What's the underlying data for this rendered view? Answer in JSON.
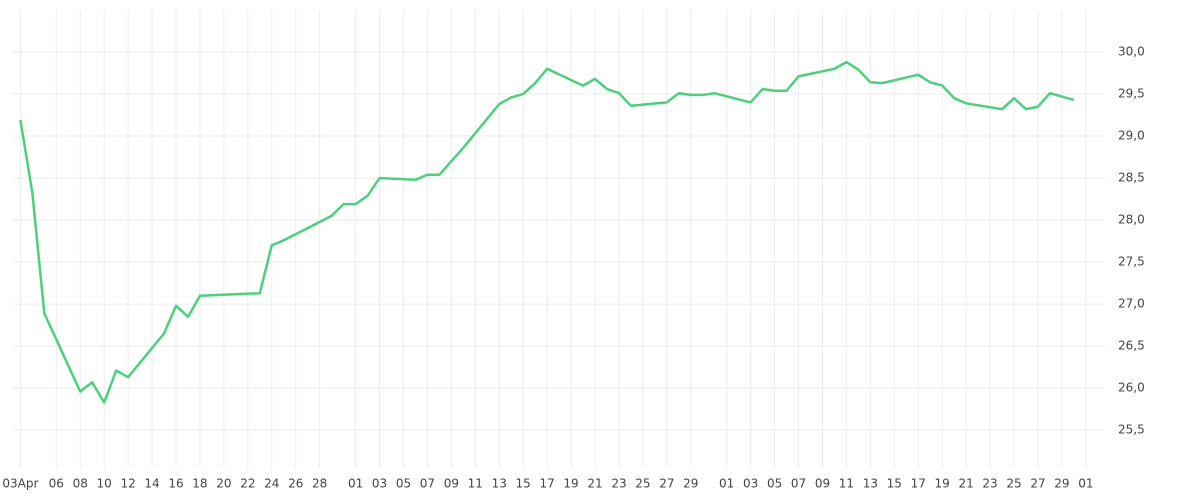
{
  "chart_data": {
    "type": "line",
    "x": [
      0,
      1,
      2,
      5,
      6,
      7,
      8,
      9,
      12,
      13,
      14,
      15,
      20,
      21,
      22,
      26,
      27,
      28,
      29,
      30,
      33,
      34,
      35,
      37,
      40,
      41,
      42,
      43,
      44,
      47,
      48,
      49,
      50,
      51,
      54,
      55,
      56,
      57,
      58,
      61,
      62,
      63,
      64,
      65,
      68,
      69,
      70,
      71,
      72,
      75,
      76,
      77,
      78,
      79,
      82,
      83,
      84,
      85,
      86,
      88
    ],
    "series": [
      {
        "color": "#4cd07d",
        "values": [
          29.19,
          28.32,
          26.89,
          25.96,
          26.07,
          25.83,
          26.21,
          26.13,
          26.65,
          26.98,
          26.85,
          27.1,
          27.13,
          27.7,
          27.76,
          28.05,
          28.19,
          28.19,
          28.29,
          28.5,
          28.48,
          28.54,
          28.54,
          28.86,
          29.38,
          29.46,
          29.5,
          29.63,
          29.8,
          29.6,
          29.68,
          29.56,
          29.51,
          29.36,
          29.4,
          29.51,
          29.49,
          29.49,
          29.51,
          29.4,
          29.56,
          29.54,
          29.54,
          29.71,
          29.8,
          29.88,
          29.79,
          29.64,
          29.63,
          29.73,
          29.64,
          29.6,
          29.45,
          29.39,
          29.32,
          29.45,
          29.32,
          29.35,
          29.51,
          29.43
        ]
      }
    ],
    "xlim": [
      -0.7,
      90.6
    ],
    "xticks": [
      {
        "value": 0,
        "label": "03Apr"
      },
      {
        "value": 3,
        "label": "06"
      },
      {
        "value": 5,
        "label": "08"
      },
      {
        "value": 7,
        "label": "10"
      },
      {
        "value": 9,
        "label": "12"
      },
      {
        "value": 11,
        "label": "14"
      },
      {
        "value": 13,
        "label": "16"
      },
      {
        "value": 15,
        "label": "18"
      },
      {
        "value": 17,
        "label": "20"
      },
      {
        "value": 19,
        "label": "22"
      },
      {
        "value": 21,
        "label": "24"
      },
      {
        "value": 23,
        "label": "26"
      },
      {
        "value": 25,
        "label": "28"
      },
      {
        "value": 28,
        "label": "01"
      },
      {
        "value": 30,
        "label": "03"
      },
      {
        "value": 32,
        "label": "05"
      },
      {
        "value": 34,
        "label": "07"
      },
      {
        "value": 36,
        "label": "09"
      },
      {
        "value": 38,
        "label": "11"
      },
      {
        "value": 40,
        "label": "13"
      },
      {
        "value": 42,
        "label": "15"
      },
      {
        "value": 44,
        "label": "17"
      },
      {
        "value": 46,
        "label": "19"
      },
      {
        "value": 48,
        "label": "21"
      },
      {
        "value": 50,
        "label": "23"
      },
      {
        "value": 52,
        "label": "25"
      },
      {
        "value": 54,
        "label": "27"
      },
      {
        "value": 56,
        "label": "29"
      },
      {
        "value": 59,
        "label": "01"
      },
      {
        "value": 61,
        "label": "03"
      },
      {
        "value": 63,
        "label": "05"
      },
      {
        "value": 65,
        "label": "07"
      },
      {
        "value": 67,
        "label": "09"
      },
      {
        "value": 69,
        "label": "11"
      },
      {
        "value": 71,
        "label": "13"
      },
      {
        "value": 73,
        "label": "15"
      },
      {
        "value": 75,
        "label": "17"
      },
      {
        "value": 77,
        "label": "19"
      },
      {
        "value": 79,
        "label": "21"
      },
      {
        "value": 81,
        "label": "23"
      },
      {
        "value": 83,
        "label": "25"
      },
      {
        "value": 85,
        "label": "27"
      },
      {
        "value": 87,
        "label": "29"
      },
      {
        "value": 89,
        "label": "01"
      }
    ],
    "ylim": [
      25.05,
      30.5
    ],
    "yticks": [
      {
        "value": 25.5,
        "label": "25,5"
      },
      {
        "value": 26,
        "label": "26,0"
      },
      {
        "value": 26.5,
        "label": "26,5"
      },
      {
        "value": 27,
        "label": "27,0"
      },
      {
        "value": 27.5,
        "label": "27,5"
      },
      {
        "value": 28,
        "label": "28,0"
      },
      {
        "value": 28.5,
        "label": "28,5"
      },
      {
        "value": 29,
        "label": "29,0"
      },
      {
        "value": 29.5,
        "label": "29,5"
      },
      {
        "value": 30,
        "label": "30,0"
      }
    ],
    "grid": true
  }
}
